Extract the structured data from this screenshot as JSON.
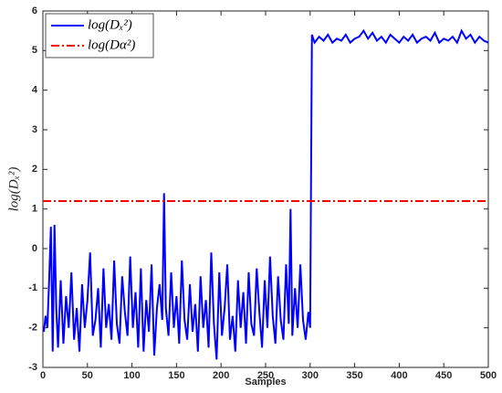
{
  "chart_data": {
    "type": "line",
    "xlabel": "Samples",
    "ylabel": "log(Dₓ²)",
    "xlim": [
      0,
      500
    ],
    "xticks": [
      0,
      50,
      100,
      150,
      200,
      250,
      300,
      350,
      400,
      450,
      500
    ],
    "ylim": [
      -3,
      6
    ],
    "yticks": [
      -3,
      -2,
      -1,
      0,
      1,
      2,
      3,
      4,
      5,
      6
    ],
    "legend": "upper left",
    "series": [
      {
        "name": "log(Dₓ²)",
        "color": "#0000ff",
        "style": "solid",
        "x": [
          1,
          3,
          5,
          7,
          9,
          11,
          13,
          15,
          17,
          20,
          23,
          26,
          29,
          32,
          35,
          38,
          41,
          44,
          47,
          50,
          53,
          56,
          59,
          62,
          65,
          68,
          71,
          74,
          77,
          80,
          83,
          86,
          89,
          92,
          95,
          98,
          101,
          104,
          107,
          110,
          113,
          116,
          119,
          122,
          125,
          128,
          131,
          134,
          136,
          138,
          141,
          144,
          147,
          150,
          153,
          156,
          159,
          162,
          165,
          168,
          171,
          174,
          177,
          180,
          183,
          186,
          189,
          192,
          195,
          198,
          201,
          204,
          207,
          210,
          213,
          216,
          219,
          222,
          225,
          228,
          231,
          234,
          237,
          240,
          243,
          246,
          249,
          252,
          255,
          258,
          261,
          264,
          267,
          270,
          273,
          276,
          278,
          280,
          283,
          286,
          289,
          292,
          295,
          298,
          300,
          302,
          305,
          310,
          315,
          320,
          325,
          330,
          335,
          340,
          345,
          350,
          355,
          360,
          365,
          370,
          375,
          380,
          385,
          390,
          395,
          400,
          405,
          410,
          415,
          420,
          425,
          430,
          435,
          440,
          445,
          450,
          455,
          460,
          465,
          470,
          475,
          480,
          485,
          490,
          495,
          500
        ],
        "values": [
          -2.1,
          -1.7,
          -2.0,
          -0.8,
          0.55,
          -2.6,
          0.6,
          -1.5,
          -2.5,
          -0.8,
          -2.4,
          -1.2,
          -2.0,
          -0.6,
          -2.3,
          -1.5,
          -2.6,
          -0.9,
          -2.0,
          -1.3,
          -0.1,
          -2.2,
          -1.8,
          -1.0,
          -2.5,
          -0.5,
          -2.0,
          -1.4,
          -2.3,
          -0.3,
          -1.9,
          -2.4,
          -0.7,
          -1.6,
          -2.2,
          -0.2,
          -2.0,
          -1.1,
          -2.5,
          -0.5,
          -2.6,
          -1.3,
          -2.1,
          -0.4,
          -2.7,
          -1.5,
          -0.9,
          -1.8,
          1.4,
          -1.5,
          -2.2,
          -0.6,
          -2.0,
          -1.2,
          -2.4,
          -0.3,
          -1.8,
          -2.3,
          -0.9,
          -2.1,
          -1.4,
          -2.6,
          -0.7,
          -2.0,
          -1.3,
          -2.5,
          -0.1,
          -1.9,
          -2.8,
          -0.6,
          -2.2,
          -1.5,
          -0.4,
          -2.3,
          -1.7,
          -2.6,
          -0.8,
          -2.0,
          -1.1,
          -2.4,
          -0.6,
          -1.9,
          -2.2,
          -0.5,
          -1.6,
          -2.5,
          -0.8,
          -2.0,
          -0.2,
          -1.7,
          -2.4,
          -0.7,
          -1.8,
          -2.3,
          -0.4,
          -1.9,
          1.0,
          -2.2,
          -1.0,
          -2.0,
          -0.4,
          -1.8,
          -2.3,
          -1.6,
          -2.0,
          5.4,
          5.2,
          5.35,
          5.25,
          5.4,
          5.2,
          5.3,
          5.25,
          5.4,
          5.2,
          5.3,
          5.35,
          5.5,
          5.3,
          5.45,
          5.25,
          5.35,
          5.2,
          5.4,
          5.3,
          5.2,
          5.35,
          5.25,
          5.4,
          5.2,
          5.3,
          5.35,
          5.25,
          5.45,
          5.2,
          5.3,
          5.25,
          5.35,
          5.2,
          5.5,
          5.3,
          5.4,
          5.2,
          5.35,
          5.25,
          5.2
        ]
      },
      {
        "name": "log(Dα²)",
        "color": "#ff0000",
        "style": "dashdot",
        "x": [
          0,
          500
        ],
        "values": [
          1.2,
          1.2
        ]
      }
    ]
  }
}
